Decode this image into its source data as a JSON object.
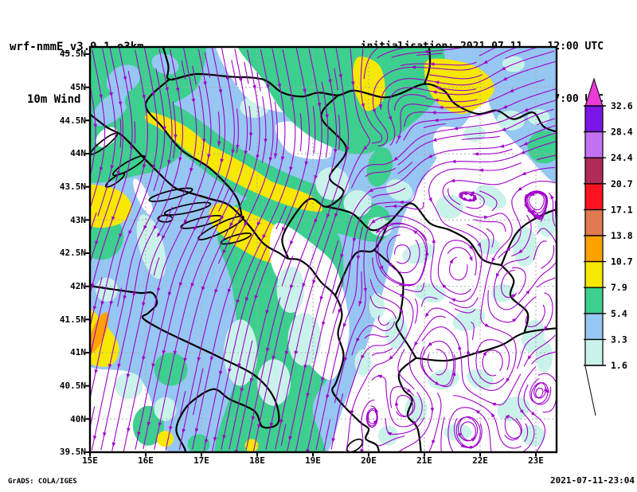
{
  "header": {
    "model": "wrf-nmmE_v3.9.1-e3km",
    "field": "10m Wind  [m/s]",
    "init": "initialisation: 2021.07.11.   12:00 UTC",
    "valid": "valid(+67h): 2021.JUL.14 07:00 UTC"
  },
  "axes": {
    "lat_labels": [
      "45.5N",
      "45N",
      "44.5N",
      "44N",
      "43.5N",
      "43N",
      "42.5N",
      "42N",
      "41.5N",
      "41N",
      "40.5N",
      "40N",
      "39.5N"
    ],
    "lon_labels": [
      "15E",
      "16E",
      "17E",
      "18E",
      "19E",
      "20E",
      "21E",
      "22E",
      "23E"
    ]
  },
  "map": {
    "lat_ticks": [
      45.5,
      45,
      44.5,
      44,
      43.5,
      43,
      42.5,
      42,
      41.5,
      41,
      40.5,
      40,
      39.5
    ],
    "lon_ticks": [
      15,
      16,
      17,
      18,
      19,
      20,
      21,
      22,
      23
    ],
    "streamline_color": "#a000c8",
    "border_color": "#000000",
    "grid_color": "#aaaaaa"
  },
  "colorbar": {
    "levels": [
      "1.6",
      "3.3",
      "5.4",
      "7.9",
      "10.7",
      "13.8",
      "17.1",
      "20.7",
      "24.4",
      "28.4",
      "32.6"
    ],
    "segment_colors": [
      "#c9f3ea",
      "#96c6f2",
      "#3ccf8e",
      "#f6e800",
      "#ffa200",
      "#e27a50",
      "#fb1420",
      "#b02a5a",
      "#c272f0",
      "#7d14e8"
    ],
    "over_color": "#ea3ad8"
  },
  "footer": {
    "left": "GrADS: COLA/IGES",
    "right": "2021-07-11-23:04"
  }
}
